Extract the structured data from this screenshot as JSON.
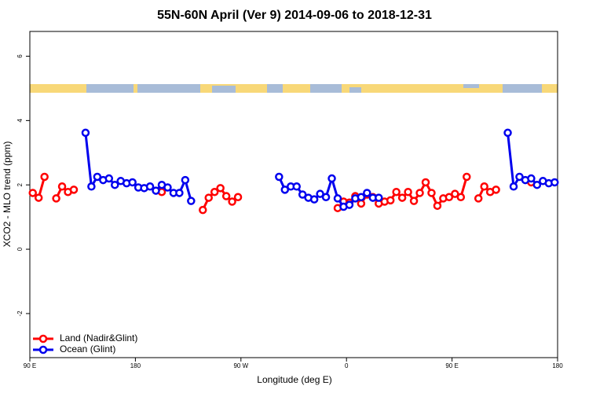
{
  "chart_data": {
    "type": "line",
    "title": "55N-60N April (Ver 9)   2014-09-06 to 2018-12-31",
    "x_label": "Longitude (deg E)",
    "y_label": "XCO2 - MLO trend (ppm)",
    "x": [
      92.5,
      97.5,
      102.5,
      107.5,
      112.5,
      117.5,
      122.5,
      127.5,
      132.5,
      137.5,
      142.5,
      147.5,
      152.5,
      157.5,
      162.5,
      167.5,
      172.5,
      177.5,
      182.5,
      187.5,
      192.5,
      197.5,
      202.5,
      207.5,
      212.5,
      217.5,
      222.5,
      227.5,
      232.5,
      237.5,
      242.5,
      247.5,
      252.5,
      257.5,
      262.5,
      267.5,
      272.5,
      277.5,
      282.5,
      287.5,
      292.5,
      297.5,
      302.5,
      307.5,
      312.5,
      317.5,
      322.5,
      327.5,
      332.5,
      337.5,
      342.5,
      347.5,
      352.5,
      357.5,
      362.5,
      367.5,
      372.5,
      377.5,
      382.5,
      387.5,
      392.5,
      397.5,
      402.5,
      407.5,
      412.5,
      417.5,
      422.5,
      427.5,
      432.5,
      437.5,
      442.5,
      447.5,
      452.5,
      457.5,
      462.5,
      467.5,
      472.5,
      477.5,
      482.5,
      487.5,
      492.5,
      497.5,
      502.5,
      507.5,
      512.5,
      517.5,
      522.5,
      527.5,
      532.5,
      537.5
    ],
    "series": [
      {
        "name": "Land (Nadir&Glint)",
        "color": "#ff0000",
        "values": [
          1.75,
          1.6,
          2.25,
          null,
          1.58,
          1.95,
          1.78,
          1.85,
          null,
          null,
          null,
          null,
          null,
          null,
          null,
          null,
          null,
          null,
          null,
          null,
          null,
          null,
          1.78,
          null,
          null,
          null,
          null,
          null,
          null,
          1.22,
          1.6,
          1.78,
          1.9,
          1.65,
          1.48,
          1.62,
          null,
          null,
          null,
          null,
          null,
          null,
          null,
          null,
          null,
          null,
          null,
          null,
          null,
          null,
          null,
          null,
          1.28,
          1.48,
          1.45,
          1.65,
          1.42,
          1.7,
          1.62,
          1.42,
          1.48,
          1.52,
          1.78,
          1.6,
          1.78,
          1.5,
          1.75,
          2.08,
          1.75,
          1.35,
          1.58,
          1.62,
          1.72,
          1.62,
          2.25,
          null,
          1.58,
          1.95,
          1.78,
          1.85,
          null,
          null,
          null,
          null,
          null,
          2.08,
          null,
          null,
          null,
          null
        ]
      },
      {
        "name": "Ocean (Glint)",
        "color": "#0000ee",
        "values": [
          null,
          null,
          null,
          null,
          null,
          null,
          null,
          null,
          null,
          3.62,
          1.95,
          2.25,
          2.15,
          2.2,
          2.0,
          2.12,
          2.05,
          2.08,
          1.92,
          1.9,
          1.95,
          1.82,
          2.0,
          1.92,
          1.75,
          1.75,
          2.15,
          1.5,
          null,
          null,
          null,
          null,
          null,
          null,
          null,
          null,
          null,
          null,
          null,
          null,
          null,
          null,
          2.25,
          1.85,
          1.95,
          1.95,
          1.7,
          1.6,
          1.55,
          1.72,
          1.62,
          2.2,
          1.58,
          1.32,
          1.38,
          1.58,
          1.62,
          1.75,
          1.6,
          1.6,
          null,
          null,
          null,
          null,
          null,
          null,
          null,
          null,
          null,
          null,
          null,
          null,
          null,
          null,
          null,
          null,
          null,
          null,
          null,
          null,
          null,
          3.62,
          1.95,
          2.25,
          2.15,
          2.2,
          2.0,
          2.12,
          2.05,
          2.08
        ]
      }
    ],
    "xlim": [
      90,
      540
    ],
    "xticks": [
      {
        "value": 90,
        "label": "90 E"
      },
      180,
      {
        "value": 270,
        "label": "90 W"
      },
      {
        "value": 360,
        "label": "0"
      },
      {
        "value": 450,
        "label": "90 E"
      },
      {
        "value": 540,
        "label": "180"
      }
    ],
    "ylim": [
      -3.37,
      6.77
    ],
    "yticks": [
      -2,
      0,
      2,
      4,
      6
    ],
    "legend": "bottom-left"
  }
}
